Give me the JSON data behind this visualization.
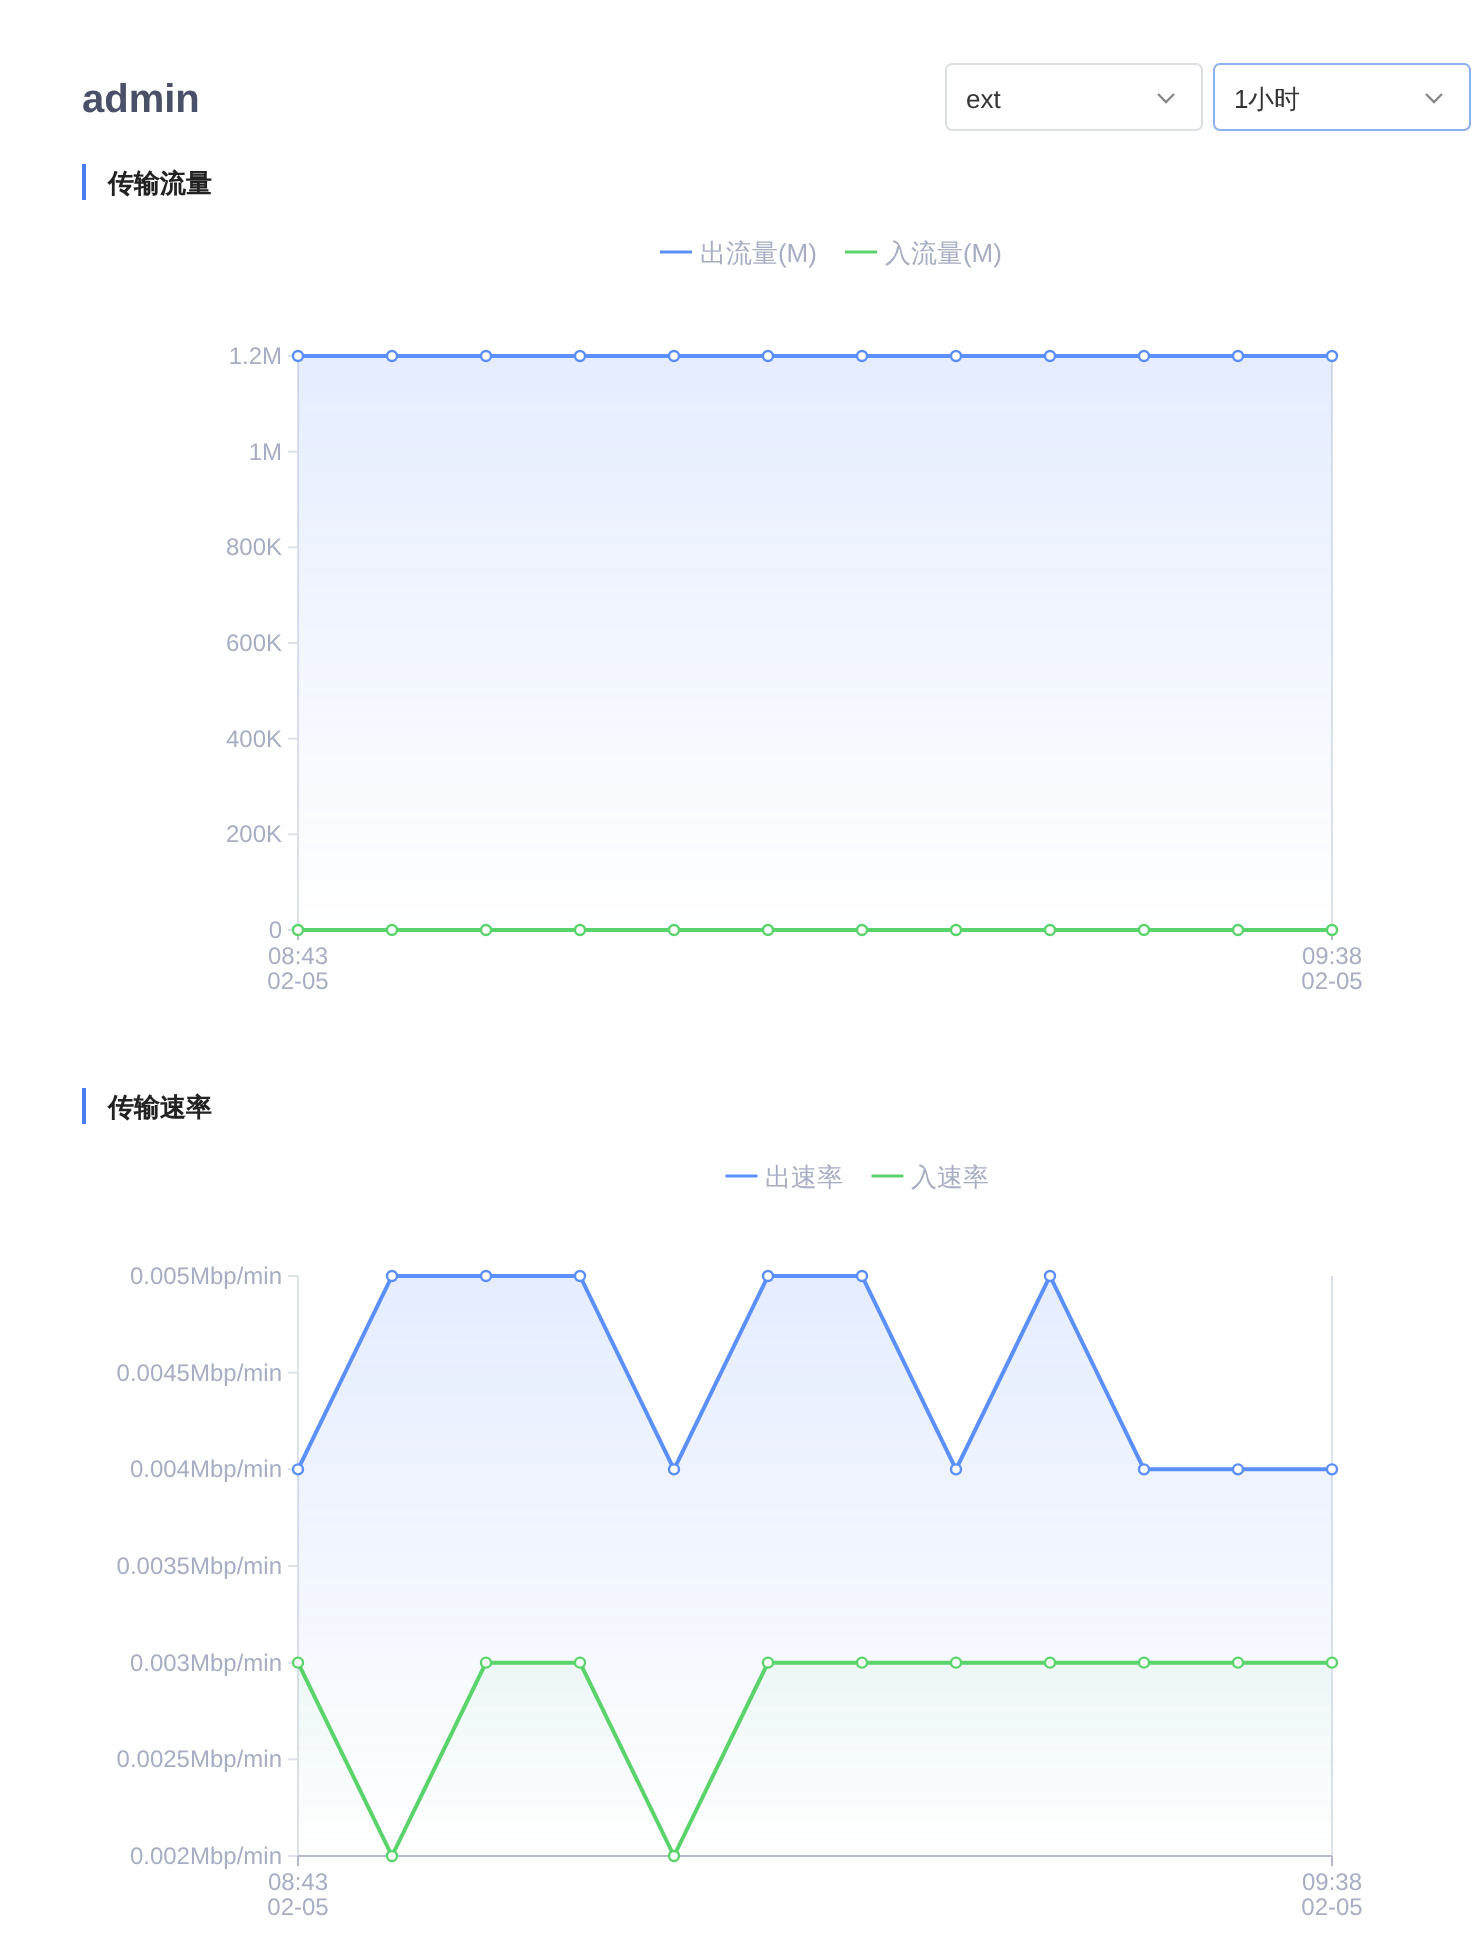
{
  "chart_data": [
    {
      "type": "other",
      "title": "admin",
      "annotations": [
        "ext",
        "1小时"
      ]
    },
    {
      "type": "area",
      "title": "传输流量",
      "legend": "top",
      "marker": "circle",
      "grid": false,
      "categories": [
        "08:43\n02-05",
        null,
        null,
        null,
        null,
        null,
        null,
        null,
        null,
        null,
        null,
        "09:38\n02-05"
      ],
      "series": [
        {
          "name": "出流量(M)",
          "color": "#5b8ff9",
          "values": [
            1200000,
            1200000,
            1200000,
            1200000,
            1200000,
            1200000,
            1200000,
            1200000,
            1200000,
            1200000,
            1200000,
            1200000
          ]
        },
        {
          "name": "入流量(M)",
          "type": "line",
          "color": "#5ad46a",
          "values": [
            0,
            0,
            0,
            0,
            0,
            0,
            0,
            0,
            0,
            0,
            0,
            0
          ]
        }
      ],
      "ylim": [
        0,
        1200000
      ],
      "yticks": [
        0,
        {
          "value": 200000,
          "label": "200K"
        },
        {
          "value": 400000,
          "label": "400K"
        },
        {
          "value": 600000,
          "label": "600K"
        },
        {
          "value": 800000,
          "label": "800K"
        },
        {
          "value": 1000000,
          "label": "1M"
        },
        {
          "value": 1200000,
          "label": "1.2M"
        }
      ]
    },
    {
      "type": "area",
      "title": "传输速率",
      "legend": "top",
      "marker": "circle",
      "grid": false,
      "categories": [
        "08:43\n02-05",
        null,
        null,
        null,
        null,
        null,
        null,
        null,
        null,
        null,
        null,
        "09:38\n02-05"
      ],
      "series": [
        {
          "name": "出速率",
          "color": "#5b8ff9",
          "values": [
            0.004,
            0.005,
            0.005,
            0.005,
            0.004,
            0.005,
            0.005,
            0.004,
            0.005,
            0.004,
            0.004,
            0.004
          ]
        },
        {
          "name": "入速率",
          "color": "#5ad46a",
          "values": [
            0.003,
            0.002,
            0.003,
            0.003,
            0.002,
            0.003,
            0.003,
            0.003,
            0.003,
            0.003,
            0.003,
            0.003
          ]
        }
      ],
      "ylim": [
        0.002,
        0.005
      ],
      "yticks": [
        {
          "value": 0.002,
          "label": "0.002Mbp/min"
        },
        {
          "value": 0.0025,
          "label": "0.0025Mbp/min"
        },
        {
          "value": 0.003,
          "label": "0.003Mbp/min"
        },
        {
          "value": 0.0035,
          "label": "0.0035Mbp/min"
        },
        {
          "value": 0.004,
          "label": "0.004Mbp/min"
        },
        {
          "value": 0.0045,
          "label": "0.0045Mbp/min"
        },
        {
          "value": 0.005,
          "label": "0.005Mbp/min"
        }
      ]
    }
  ]
}
